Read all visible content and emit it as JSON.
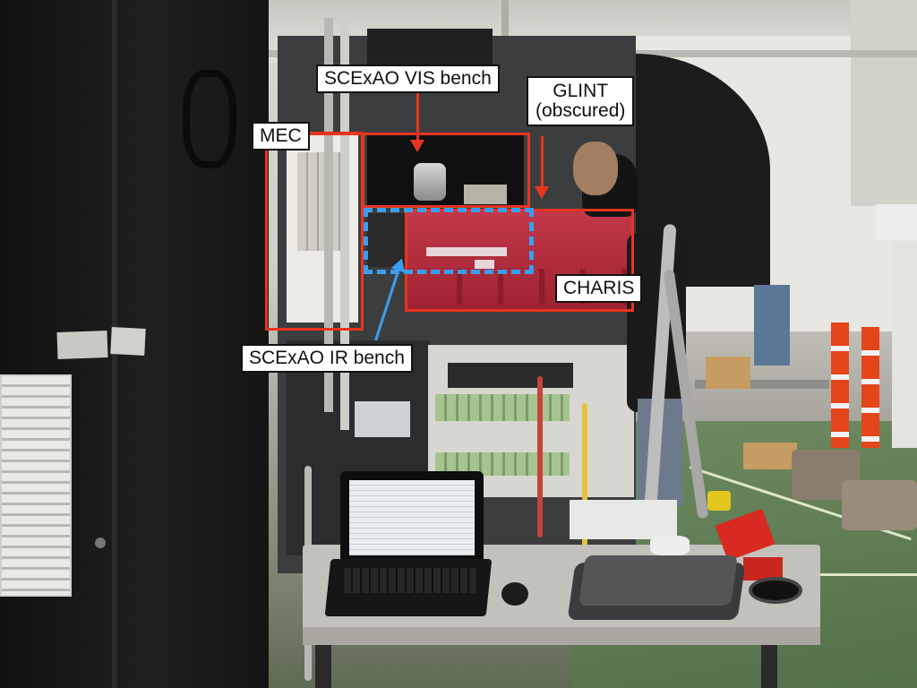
{
  "labels": {
    "scexao_vis_bench": "SCExAO VIS bench",
    "glint_line1": "GLINT",
    "glint_line2": "(obscured)",
    "mec": "MEC",
    "charis": "CHARIS",
    "scexao_ir_bench": "SCExAO IR bench"
  },
  "colors": {
    "annotation_red": "#e9341f",
    "annotation_blue": "#3a9ef0",
    "label_background": "#ffffff"
  },
  "icons": {
    "arrow": "down-arrow-icon"
  }
}
